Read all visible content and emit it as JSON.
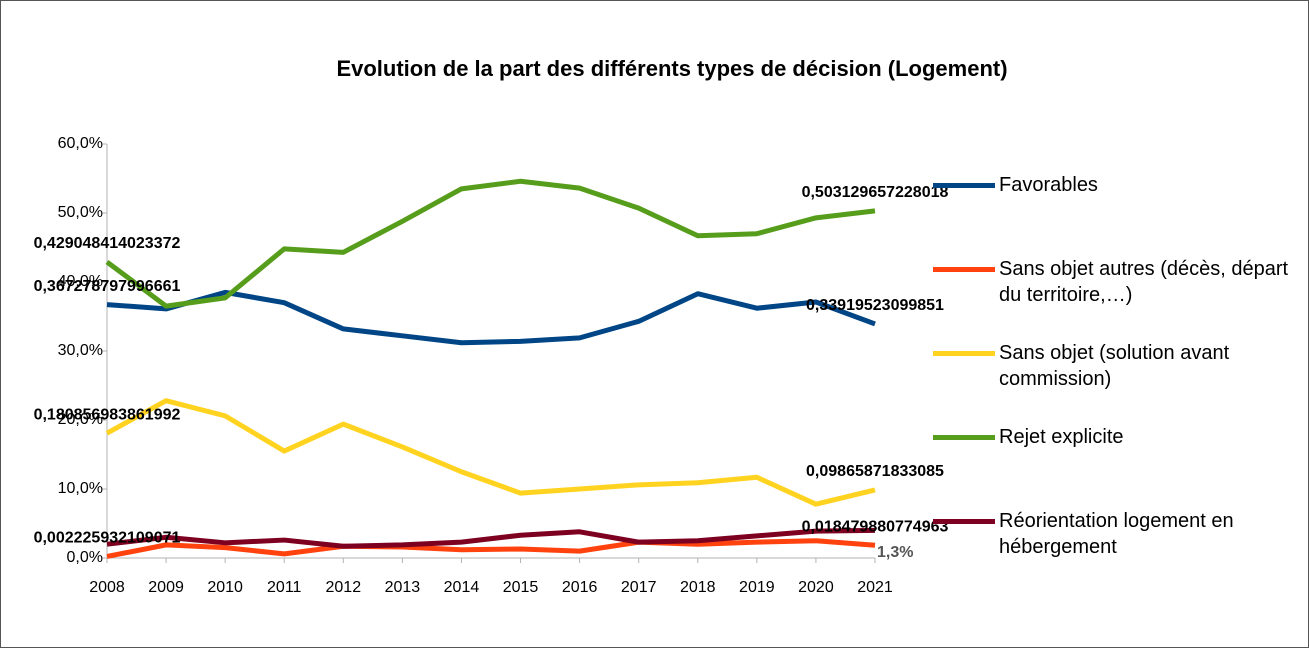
{
  "chart_data": {
    "type": "line",
    "title": "Evolution de la part des différents types de décision (Logement)",
    "categories": [
      "2008",
      "2009",
      "2010",
      "2011",
      "2012",
      "2013",
      "2014",
      "2015",
      "2016",
      "2017",
      "2018",
      "2019",
      "2020",
      "2021"
    ],
    "ylim": [
      0,
      60
    ],
    "yticks": [
      {
        "value": 0,
        "label": "0,0%"
      },
      {
        "value": 10,
        "label": "10,0%"
      },
      {
        "value": 20,
        "label": "20,0%"
      },
      {
        "value": 30,
        "label": "30,0%"
      },
      {
        "value": 40,
        "label": "40,0%"
      },
      {
        "value": 50,
        "label": "50,0%"
      },
      {
        "value": 60,
        "label": "60,0%"
      }
    ],
    "grid": false,
    "legend": "right",
    "series": [
      {
        "name": "Favorables",
        "color": "#004586",
        "values": [
          36.7278797996661,
          36.1,
          38.5,
          37.0,
          33.2,
          32.2,
          31.2,
          31.4,
          31.9,
          34.3,
          38.3,
          36.2,
          37.1,
          33.919523099851
        ],
        "value_labels": [
          "0,367278797996661",
          null,
          null,
          null,
          null,
          null,
          null,
          null,
          null,
          null,
          null,
          null,
          null,
          "0,33919523099851"
        ]
      },
      {
        "name": "Sans objet autres (décès, départ du territoire,…)",
        "color": "#ff420e",
        "values": [
          0.2225932109071,
          1.9,
          1.5,
          0.6,
          1.7,
          1.6,
          1.2,
          1.3,
          1.0,
          2.3,
          2.0,
          2.3,
          2.5,
          1.8479880774963
        ],
        "value_labels": [
          "0,002225932109071",
          null,
          null,
          null,
          null,
          null,
          null,
          null,
          null,
          null,
          null,
          null,
          null,
          "0,018479880774963"
        ]
      },
      {
        "name": "Sans objet (solution avant commission)",
        "color": "#ffd320",
        "values": [
          18.0856983861992,
          22.8,
          20.6,
          15.5,
          19.4,
          16.1,
          12.5,
          9.4,
          10.0,
          10.6,
          10.9,
          11.7,
          7.8,
          9.865871833085
        ],
        "value_labels": [
          "0,180856983861992",
          null,
          null,
          null,
          null,
          null,
          null,
          null,
          null,
          null,
          null,
          null,
          null,
          "0,09865871833085"
        ]
      },
      {
        "name": "Rejet explicite",
        "color": "#579d1c",
        "values": [
          42.9048414023372,
          36.5,
          37.7,
          44.8,
          44.3,
          48.8,
          53.5,
          54.6,
          53.6,
          50.7,
          46.7,
          47.0,
          49.3,
          50.3129657228018
        ],
        "value_labels": [
          "0,429048414023372",
          null,
          null,
          null,
          null,
          null,
          null,
          null,
          null,
          null,
          null,
          null,
          null,
          "0,503129657228018"
        ]
      },
      {
        "name": "Réorientation logement en hébergement",
        "color": "#7e0021",
        "values": [
          2.0,
          3.0,
          2.2,
          2.6,
          1.7,
          1.9,
          2.3,
          3.3,
          3.8,
          2.3,
          2.5,
          3.2,
          3.9,
          4.0
        ]
      }
    ],
    "annotations": [
      "1,3%"
    ]
  }
}
